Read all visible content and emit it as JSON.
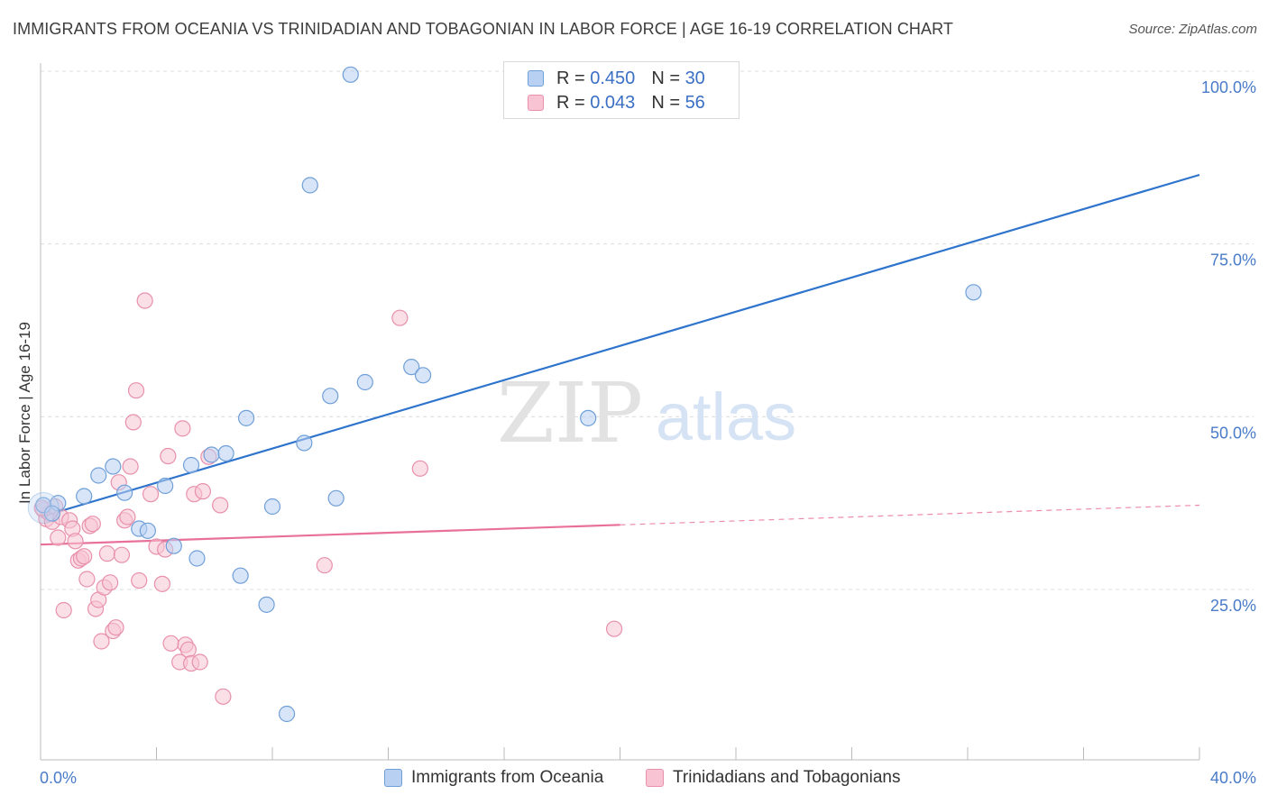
{
  "title": "IMMIGRANTS FROM OCEANIA VS TRINIDADIAN AND TOBAGONIAN IN LABOR FORCE | AGE 16-19 CORRELATION CHART",
  "source": "Source: ZipAtlas.com",
  "watermark": {
    "zip": "ZIP",
    "atlas": "atlas"
  },
  "legend": {
    "series1": {
      "r_label": "R = ",
      "r_value": "0.450",
      "n_label": "N = ",
      "n_value": "30"
    },
    "series2": {
      "r_label": "R = ",
      "r_value": "0.043",
      "n_label": "N = ",
      "n_value": "56"
    }
  },
  "colors": {
    "blue_fill": "#b8d0f2",
    "blue_stroke": "#6f9fd8",
    "blue_line": "#2e74cc",
    "pink_fill": "#f8c4d4",
    "pink_stroke": "#e890ac",
    "pink_line": "#e8709a",
    "grid": "#dcdcdc",
    "tick_text": "#4a7bc8"
  },
  "chart_data": {
    "type": "scatter",
    "ylabel": "In Labor Force | Age 16-19",
    "xlabel": "",
    "xlim": [
      0,
      40
    ],
    "ylim": [
      5,
      100
    ],
    "x_tick_labels": [
      "0.0%",
      "40.0%"
    ],
    "y_ticks": [
      25,
      50,
      75,
      100
    ],
    "y_tick_labels": [
      "25.0%",
      "50.0%",
      "75.0%",
      "100.0%"
    ],
    "grid": true,
    "series": [
      {
        "name": "Immigrants from Oceania",
        "color": "blue",
        "trend": {
          "x0": 0,
          "y0": 35.5,
          "x1": 40,
          "y1": 85
        },
        "points": [
          [
            0.1,
            37.2
          ],
          [
            0.6,
            37.5
          ],
          [
            1.5,
            38.5
          ],
          [
            2.0,
            41.5
          ],
          [
            2.5,
            42.8
          ],
          [
            2.9,
            39.0
          ],
          [
            3.4,
            33.8
          ],
          [
            3.7,
            33.5
          ],
          [
            4.3,
            40.0
          ],
          [
            4.6,
            31.3
          ],
          [
            5.2,
            43.0
          ],
          [
            5.4,
            29.5
          ],
          [
            5.9,
            44.5
          ],
          [
            6.4,
            44.7
          ],
          [
            6.9,
            27.0
          ],
          [
            7.1,
            49.8
          ],
          [
            8.0,
            37.0
          ],
          [
            7.8,
            22.8
          ],
          [
            8.5,
            7.0
          ],
          [
            9.1,
            46.2
          ],
          [
            9.3,
            83.5
          ],
          [
            10.0,
            53.0
          ],
          [
            10.2,
            38.2
          ],
          [
            10.7,
            99.5
          ],
          [
            11.2,
            55.0
          ],
          [
            12.8,
            57.2
          ],
          [
            13.2,
            56.0
          ],
          [
            18.9,
            49.8
          ],
          [
            32.2,
            68.0
          ],
          [
            0.4,
            36.0
          ]
        ]
      },
      {
        "name": "Trinidadians and Tobagonians",
        "color": "pink",
        "trend": {
          "x0": 0,
          "y0": 31.5,
          "x1": 40,
          "y1": 37.2,
          "solid_until": 20
        },
        "points": [
          [
            0.1,
            36.5
          ],
          [
            0.2,
            35.2
          ],
          [
            0.3,
            36.0
          ],
          [
            0.4,
            34.8
          ],
          [
            0.5,
            37.0
          ],
          [
            0.6,
            32.5
          ],
          [
            0.7,
            35.5
          ],
          [
            0.8,
            22.0
          ],
          [
            1.0,
            35.0
          ],
          [
            1.1,
            33.8
          ],
          [
            1.2,
            32.0
          ],
          [
            1.3,
            29.2
          ],
          [
            1.4,
            29.5
          ],
          [
            1.5,
            29.8
          ],
          [
            1.6,
            26.5
          ],
          [
            1.7,
            34.2
          ],
          [
            1.8,
            34.5
          ],
          [
            1.9,
            22.2
          ],
          [
            2.0,
            23.5
          ],
          [
            2.1,
            17.5
          ],
          [
            2.2,
            25.3
          ],
          [
            2.3,
            30.2
          ],
          [
            2.4,
            26.0
          ],
          [
            2.5,
            19.0
          ],
          [
            2.6,
            19.5
          ],
          [
            2.7,
            40.5
          ],
          [
            2.8,
            30.0
          ],
          [
            2.9,
            35.0
          ],
          [
            3.0,
            35.5
          ],
          [
            3.1,
            42.8
          ],
          [
            3.2,
            49.2
          ],
          [
            3.3,
            53.8
          ],
          [
            3.4,
            26.3
          ],
          [
            3.6,
            66.8
          ],
          [
            3.8,
            38.8
          ],
          [
            4.0,
            31.2
          ],
          [
            4.2,
            25.8
          ],
          [
            4.3,
            30.8
          ],
          [
            4.4,
            44.3
          ],
          [
            4.5,
            17.2
          ],
          [
            4.8,
            14.5
          ],
          [
            4.9,
            48.3
          ],
          [
            5.0,
            17.0
          ],
          [
            5.1,
            16.3
          ],
          [
            5.2,
            14.3
          ],
          [
            5.3,
            38.8
          ],
          [
            5.5,
            14.5
          ],
          [
            5.6,
            39.2
          ],
          [
            5.8,
            44.2
          ],
          [
            6.2,
            37.2
          ],
          [
            6.3,
            9.5
          ],
          [
            9.8,
            28.5
          ],
          [
            12.4,
            64.3
          ],
          [
            13.1,
            42.5
          ],
          [
            19.8,
            19.3
          ],
          [
            0.05,
            36.8
          ]
        ]
      }
    ]
  }
}
